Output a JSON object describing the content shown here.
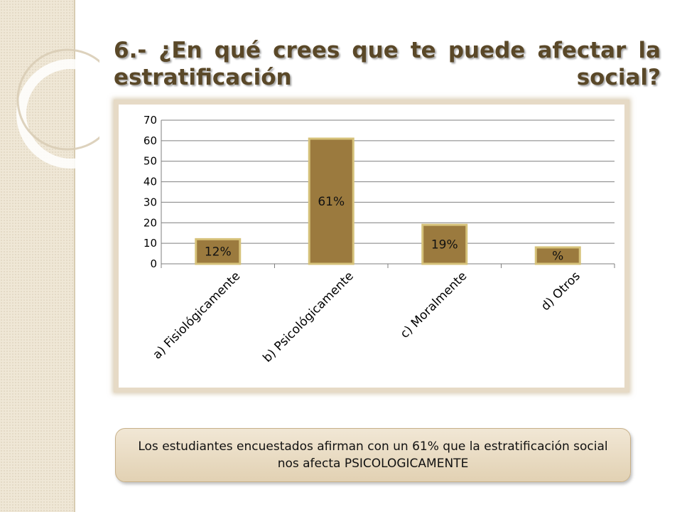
{
  "slide": {
    "title": "6.- ¿En qué crees que te puede afectar la estratificación social?",
    "summary": "Los estudiantes encuestados afirman con un 61% que la estratificación social nos afecta PSICOLOGICAMENTE"
  },
  "colors": {
    "bar_fill": "#9b7a3e",
    "bar_border": "#d6c27a",
    "sidebar": "#efe7d6",
    "title_text": "#5a4828"
  },
  "chart_data": {
    "type": "bar",
    "categories": [
      "a) Fisiológicamente",
      "b) Psicológicamente",
      "c) Moralmente",
      "d) Otros"
    ],
    "values": [
      12,
      61,
      19,
      8
    ],
    "data_labels": [
      "12%",
      "61%",
      "19%",
      "%"
    ],
    "yticks": [
      0,
      10,
      20,
      30,
      40,
      50,
      60,
      70
    ],
    "ylim": [
      0,
      70
    ],
    "grid": true,
    "legend": "none"
  }
}
